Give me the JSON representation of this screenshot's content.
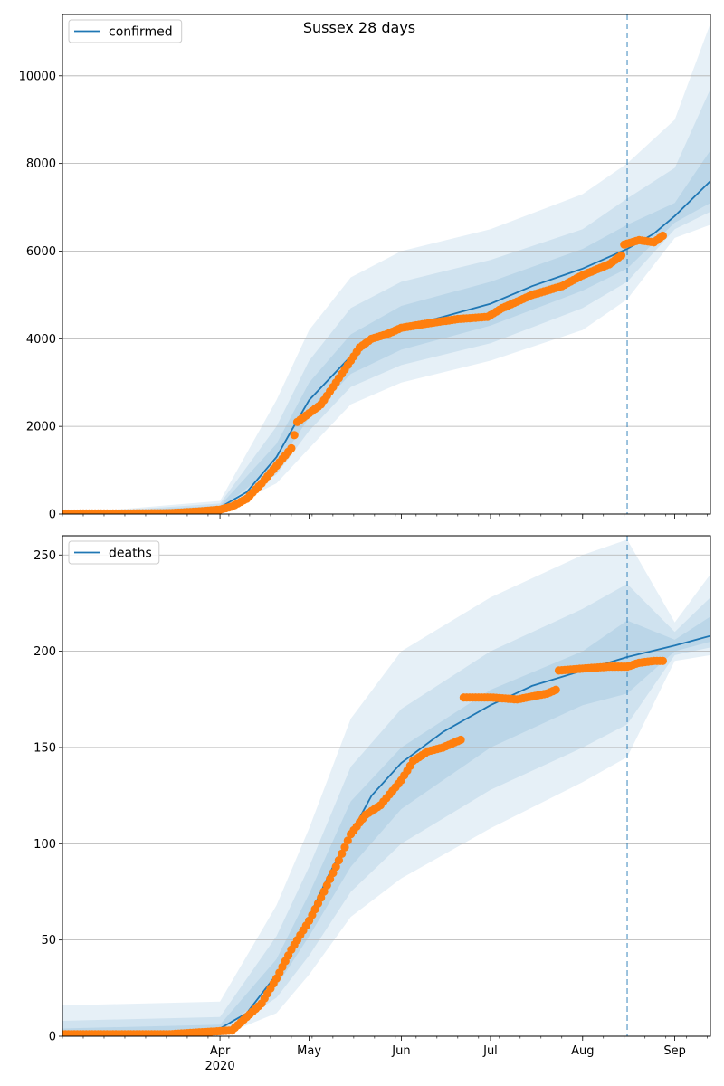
{
  "title": "Sussex 28 days",
  "chart_data": [
    {
      "type": "line",
      "title": "Sussex 28 days",
      "legend": {
        "label": "confirmed",
        "placement": "top-left"
      },
      "x_range": [
        "2020-02-08",
        "2020-09-13"
      ],
      "ylim": [
        0,
        11400
      ],
      "y_ticks": [
        0,
        2000,
        4000,
        6000,
        8000,
        10000
      ],
      "grid": "horizontal",
      "vline_date": "2020-08-16",
      "month_ticks": [
        {
          "date": "2020-04-01",
          "label": "Apr",
          "sub": "2020"
        },
        {
          "date": "2020-05-01",
          "label": "May",
          "sub": ""
        },
        {
          "date": "2020-06-01",
          "label": "Jun",
          "sub": ""
        },
        {
          "date": "2020-07-01",
          "label": "Jul",
          "sub": ""
        },
        {
          "date": "2020-08-01",
          "label": "Aug",
          "sub": ""
        },
        {
          "date": "2020-09-01",
          "label": "Sep",
          "sub": ""
        }
      ],
      "series": [
        {
          "name": "confirmed",
          "kind": "model",
          "color": "#1f77b4",
          "x": [
            "2020-02-08",
            "2020-03-15",
            "2020-03-25",
            "2020-04-01",
            "2020-04-10",
            "2020-04-20",
            "2020-04-25",
            "2020-05-01",
            "2020-05-08",
            "2020-05-15",
            "2020-05-22",
            "2020-06-01",
            "2020-06-15",
            "2020-07-01",
            "2020-07-15",
            "2020-08-01",
            "2020-08-16",
            "2020-08-25",
            "2020-09-01",
            "2020-09-13"
          ],
          "y": [
            0,
            20,
            50,
            150,
            500,
            1300,
            1900,
            2600,
            3100,
            3600,
            3950,
            4250,
            4500,
            4800,
            5200,
            5600,
            6050,
            6400,
            6800,
            7600
          ]
        },
        {
          "name": "confirmed observed",
          "kind": "points",
          "color": "#ff7f0e",
          "x": [
            "2020-02-08",
            "2020-03-01",
            "2020-03-15",
            "2020-03-25",
            "2020-04-01",
            "2020-04-05",
            "2020-04-10",
            "2020-04-15",
            "2020-04-20",
            "2020-04-25",
            "2020-04-27",
            "2020-05-01",
            "2020-05-05",
            "2020-05-08",
            "2020-05-12",
            "2020-05-15",
            "2020-05-18",
            "2020-05-22",
            "2020-05-27",
            "2020-06-01",
            "2020-06-10",
            "2020-06-20",
            "2020-06-30",
            "2020-07-05",
            "2020-07-15",
            "2020-07-25",
            "2020-08-01",
            "2020-08-10",
            "2020-08-14",
            "2020-08-15",
            "2020-08-20",
            "2020-08-25",
            "2020-08-28"
          ],
          "y": [
            10,
            15,
            20,
            60,
            100,
            170,
            350,
            700,
            1100,
            1500,
            2100,
            2300,
            2500,
            2800,
            3200,
            3500,
            3800,
            4000,
            4100,
            4250,
            4350,
            4450,
            4500,
            4700,
            5000,
            5200,
            5450,
            5700,
            5900,
            6150,
            6250,
            6200,
            6350
          ]
        },
        {
          "name": "confirmed ci outer",
          "kind": "band",
          "x": [
            "2020-02-08",
            "2020-04-01",
            "2020-04-20",
            "2020-05-01",
            "2020-05-15",
            "2020-06-01",
            "2020-07-01",
            "2020-08-01",
            "2020-08-16",
            "2020-09-01",
            "2020-09-13"
          ],
          "lo": [
            0,
            60,
            700,
            1500,
            2500,
            3000,
            3500,
            4200,
            4900,
            6300,
            6600
          ],
          "hi": [
            0,
            300,
            2600,
            4200,
            5400,
            6000,
            6500,
            7300,
            8000,
            9000,
            11200
          ]
        },
        {
          "name": "confirmed ci mid",
          "kind": "band",
          "x": [
            "2020-02-08",
            "2020-04-01",
            "2020-04-20",
            "2020-05-01",
            "2020-05-15",
            "2020-06-01",
            "2020-07-01",
            "2020-08-01",
            "2020-08-16",
            "2020-09-01",
            "2020-09-13"
          ],
          "lo": [
            0,
            90,
            900,
            1900,
            2900,
            3400,
            3900,
            4700,
            5300,
            6500,
            6900
          ],
          "hi": [
            0,
            240,
            2000,
            3500,
            4700,
            5300,
            5800,
            6500,
            7200,
            7900,
            9700
          ]
        },
        {
          "name": "confirmed ci inner",
          "kind": "band",
          "x": [
            "2020-02-08",
            "2020-04-01",
            "2020-04-20",
            "2020-05-01",
            "2020-05-15",
            "2020-06-01",
            "2020-07-01",
            "2020-08-01",
            "2020-08-16",
            "2020-09-01",
            "2020-09-13"
          ],
          "lo": [
            0,
            120,
            1100,
            2200,
            3200,
            3750,
            4300,
            5100,
            5600,
            6650,
            7100
          ],
          "hi": [
            0,
            190,
            1600,
            3000,
            4100,
            4750,
            5300,
            6050,
            6600,
            7100,
            8300
          ]
        }
      ]
    },
    {
      "type": "line",
      "legend": {
        "label": "deaths",
        "placement": "top-left"
      },
      "x_range": [
        "2020-02-08",
        "2020-09-13"
      ],
      "ylim": [
        0,
        260
      ],
      "y_ticks": [
        0,
        50,
        100,
        150,
        200,
        250
      ],
      "grid": "horizontal",
      "vline_date": "2020-08-16",
      "month_ticks": [
        {
          "date": "2020-04-01",
          "label": "Apr",
          "sub": "2020"
        },
        {
          "date": "2020-05-01",
          "label": "May",
          "sub": ""
        },
        {
          "date": "2020-06-01",
          "label": "Jun",
          "sub": ""
        },
        {
          "date": "2020-07-01",
          "label": "Jul",
          "sub": ""
        },
        {
          "date": "2020-08-01",
          "label": "Aug",
          "sub": ""
        },
        {
          "date": "2020-09-01",
          "label": "Sep",
          "sub": ""
        }
      ],
      "series": [
        {
          "name": "deaths",
          "kind": "model",
          "color": "#1f77b4",
          "x": [
            "2020-02-08",
            "2020-03-15",
            "2020-03-25",
            "2020-04-01",
            "2020-04-10",
            "2020-04-20",
            "2020-04-25",
            "2020-05-01",
            "2020-05-08",
            "2020-05-15",
            "2020-05-22",
            "2020-06-01",
            "2020-06-15",
            "2020-07-01",
            "2020-07-15",
            "2020-08-01",
            "2020-08-16",
            "2020-09-01",
            "2020-09-13"
          ],
          "y": [
            0,
            1,
            2,
            4,
            12,
            32,
            45,
            62,
            85,
            105,
            125,
            142,
            158,
            172,
            182,
            190,
            197,
            203,
            208
          ]
        },
        {
          "name": "deaths observed",
          "kind": "points",
          "color": "#ff7f0e",
          "x": [
            "2020-02-08",
            "2020-03-15",
            "2020-03-25",
            "2020-04-05",
            "2020-04-10",
            "2020-04-15",
            "2020-04-20",
            "2020-04-25",
            "2020-05-01",
            "2020-05-05",
            "2020-05-10",
            "2020-05-15",
            "2020-05-20",
            "2020-05-25",
            "2020-06-01",
            "2020-06-05",
            "2020-06-10",
            "2020-06-15",
            "2020-06-21",
            "2020-06-22",
            "2020-07-01",
            "2020-07-10",
            "2020-07-20",
            "2020-07-23",
            "2020-07-24",
            "2020-08-01",
            "2020-08-10",
            "2020-08-16",
            "2020-08-20",
            "2020-08-25",
            "2020-08-28"
          ],
          "y": [
            1,
            1,
            2,
            3,
            10,
            17,
            30,
            45,
            60,
            72,
            88,
            105,
            115,
            120,
            133,
            143,
            148,
            150,
            154,
            176,
            176,
            175,
            178,
            180,
            190,
            191,
            192,
            192,
            194,
            195,
            195
          ]
        },
        {
          "name": "deaths ci outer",
          "kind": "band",
          "x": [
            "2020-02-08",
            "2020-04-01",
            "2020-04-20",
            "2020-05-01",
            "2020-05-15",
            "2020-06-01",
            "2020-07-01",
            "2020-08-01",
            "2020-08-16",
            "2020-09-01",
            "2020-09-13"
          ],
          "lo": [
            0,
            0,
            12,
            32,
            62,
            82,
            108,
            132,
            145,
            195,
            198
          ],
          "hi": [
            16,
            18,
            68,
            108,
            165,
            200,
            228,
            250,
            258,
            215,
            240
          ]
        },
        {
          "name": "deaths ci mid",
          "kind": "band",
          "x": [
            "2020-02-08",
            "2020-04-01",
            "2020-04-20",
            "2020-05-01",
            "2020-05-15",
            "2020-06-01",
            "2020-07-01",
            "2020-08-01",
            "2020-08-16",
            "2020-09-01",
            "2020-09-13"
          ],
          "lo": [
            0,
            1,
            20,
            42,
            75,
            100,
            128,
            150,
            162,
            198,
            202
          ],
          "hi": [
            8,
            10,
            52,
            88,
            140,
            170,
            200,
            222,
            235,
            210,
            228
          ]
        },
        {
          "name": "deaths ci inner",
          "kind": "band",
          "x": [
            "2020-02-08",
            "2020-04-01",
            "2020-04-20",
            "2020-05-01",
            "2020-05-15",
            "2020-06-01",
            "2020-07-01",
            "2020-08-01",
            "2020-08-16",
            "2020-09-01",
            "2020-09-13"
          ],
          "lo": [
            0,
            2,
            26,
            52,
            88,
            118,
            150,
            172,
            178,
            200,
            205
          ],
          "hi": [
            4,
            6,
            40,
            74,
            122,
            150,
            180,
            200,
            216,
            206,
            218
          ]
        }
      ]
    }
  ],
  "style": {
    "model_color": "#1f77b4",
    "points_color": "#ff7f0e",
    "band_color": "#1f77b4",
    "grid_color": "#b0b0b0"
  }
}
